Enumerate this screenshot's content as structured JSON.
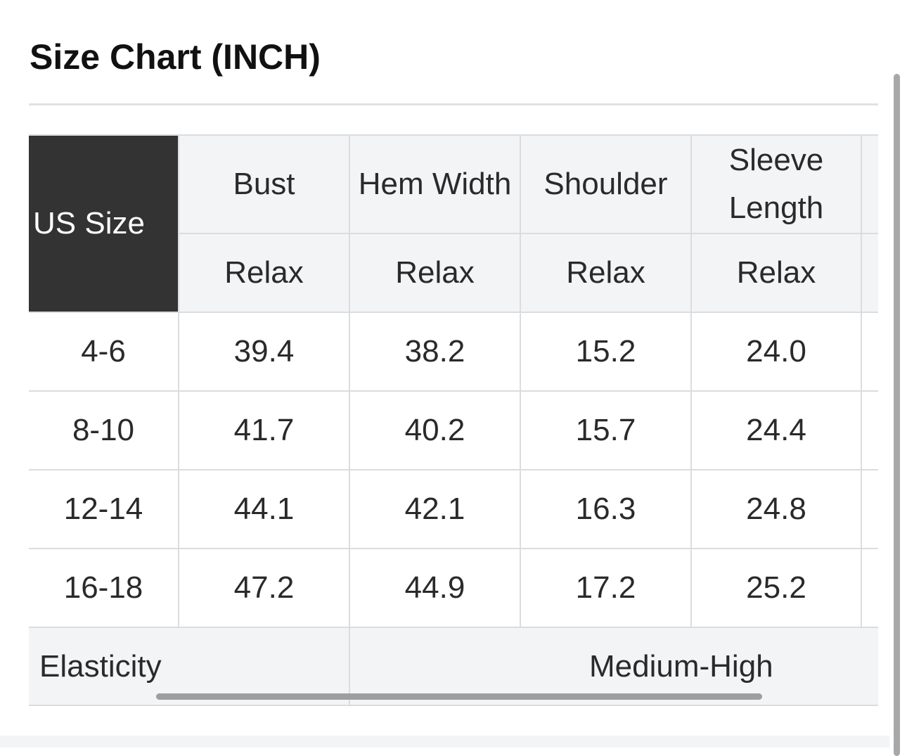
{
  "title": "Size Chart (INCH)",
  "table": {
    "corner": "US Size",
    "columns": [
      "Bust",
      "Hem Width",
      "Shoulder",
      "Sleeve Length",
      ""
    ],
    "subheaders": [
      "Relax",
      "Relax",
      "Relax",
      "Relax",
      ""
    ],
    "rows": [
      {
        "size": "4-6",
        "values": [
          "39.4",
          "38.2",
          "15.2",
          "24.0",
          ""
        ]
      },
      {
        "size": "8-10",
        "values": [
          "41.7",
          "40.2",
          "15.7",
          "24.4",
          ""
        ]
      },
      {
        "size": "12-14",
        "values": [
          "44.1",
          "42.1",
          "16.3",
          "24.8",
          ""
        ]
      },
      {
        "size": "16-18",
        "values": [
          "47.2",
          "44.9",
          "17.2",
          "25.2",
          ""
        ]
      }
    ],
    "elasticity_label": "Elasticity",
    "elasticity_value": "Medium-High"
  },
  "colors": {
    "header_dark": "#333333",
    "header_light": "#f3f4f6",
    "grid": "#dcdcdc"
  }
}
